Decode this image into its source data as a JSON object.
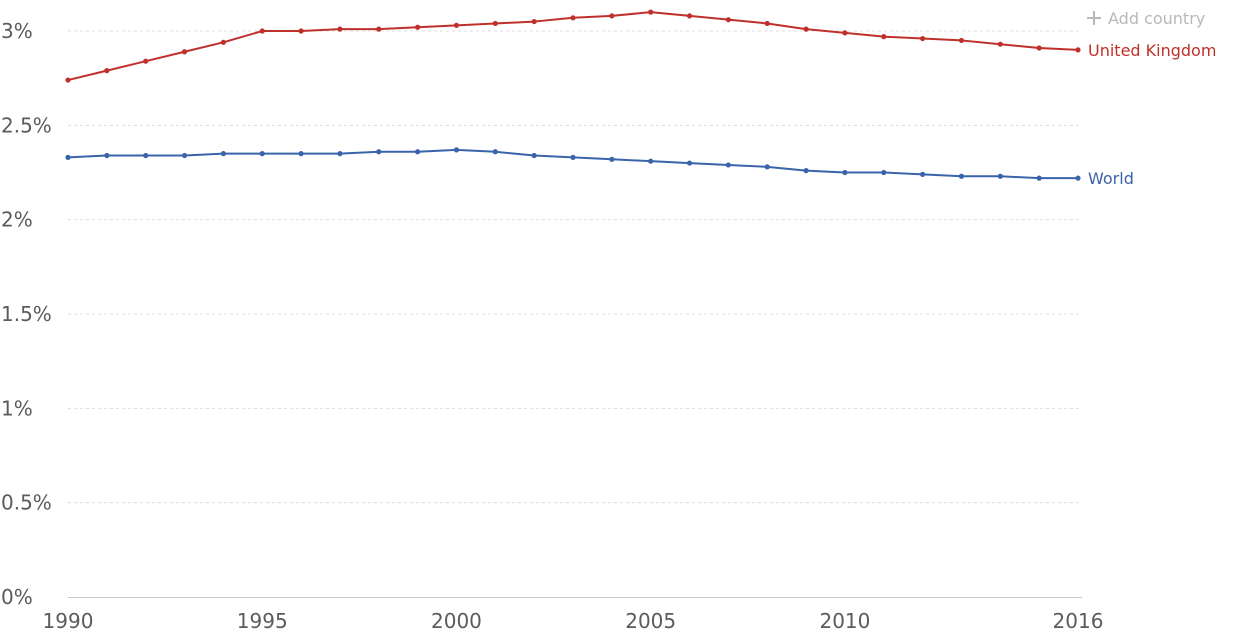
{
  "add_country": {
    "label": "Add country",
    "icon": "plus-icon"
  },
  "chart_data": {
    "type": "line",
    "title": "",
    "xlabel": "",
    "ylabel": "",
    "xlim": [
      1990,
      2016
    ],
    "ylim": [
      0,
      3.0
    ],
    "x_ticks": [
      1990,
      1995,
      2000,
      2005,
      2010,
      2016
    ],
    "x_tick_labels": [
      "1990",
      "1995",
      "2000",
      "2005",
      "2010",
      "2016"
    ],
    "y_ticks": [
      0,
      0.5,
      1,
      1.5,
      2,
      2.5,
      3
    ],
    "y_tick_labels": [
      "0%",
      "0.5%",
      "1%",
      "1.5%",
      "2%",
      "2.5%",
      "3%"
    ],
    "grid": "horizontal dashed",
    "legend": "inline labels at right end of lines",
    "x": [
      1990,
      1991,
      1992,
      1993,
      1994,
      1995,
      1996,
      1997,
      1998,
      1999,
      2000,
      2001,
      2002,
      2003,
      2004,
      2005,
      2006,
      2007,
      2008,
      2009,
      2010,
      2011,
      2012,
      2013,
      2014,
      2015,
      2016
    ],
    "series": [
      {
        "name": "United Kingdom",
        "color": "#c0302b",
        "values": [
          2.74,
          2.79,
          2.84,
          2.89,
          2.94,
          3.0,
          3.0,
          3.01,
          3.01,
          3.02,
          3.03,
          3.04,
          3.05,
          3.07,
          3.08,
          3.1,
          3.08,
          3.06,
          3.04,
          3.01,
          2.99,
          2.97,
          2.96,
          2.95,
          2.93,
          2.91,
          2.9
        ]
      },
      {
        "name": "World",
        "color": "#3a64aa",
        "values": [
          2.33,
          2.34,
          2.34,
          2.34,
          2.35,
          2.35,
          2.35,
          2.35,
          2.36,
          2.36,
          2.37,
          2.36,
          2.34,
          2.33,
          2.32,
          2.31,
          2.3,
          2.29,
          2.28,
          2.26,
          2.25,
          2.25,
          2.24,
          2.23,
          2.23,
          2.22,
          2.22
        ]
      }
    ]
  }
}
